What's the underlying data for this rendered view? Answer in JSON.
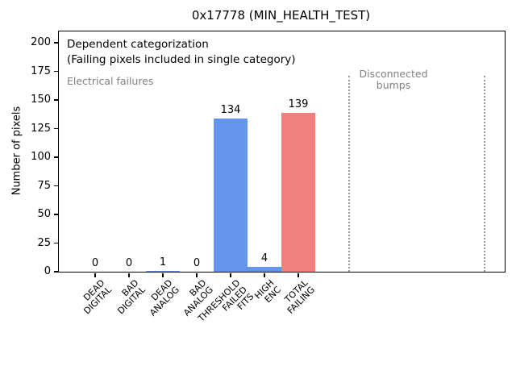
{
  "window": {
    "background": "#ffffff"
  },
  "chart_data": {
    "type": "bar",
    "title": "0x17778 (MIN_HEALTH_TEST)",
    "xlabel": "",
    "ylabel": "Number of pixels",
    "ylim": [
      0,
      210
    ],
    "yticks": [
      0,
      25,
      50,
      75,
      100,
      125,
      150,
      175,
      200
    ],
    "grid": false,
    "legend": "none",
    "categories": [
      "DEAD\nDIGITAL",
      "BAD\nDIGITAL",
      "DEAD\nANALOG",
      "BAD\nANALOG",
      "THRESHOLD\nFAILED\nFITS",
      "HIGH\nENC",
      "TOTAL\nFAILING"
    ],
    "values": [
      0,
      0,
      1,
      0,
      134,
      4,
      139
    ],
    "bar_value_labels": [
      "0",
      "0",
      "1",
      "0",
      "134",
      "4",
      "139"
    ],
    "bar_colors": [
      "#6495ed",
      "#6495ed",
      "#6495ed",
      "#6495ed",
      "#6495ed",
      "#6495ed",
      "#f08080"
    ],
    "colors": {
      "blue_bar": "#6495ed",
      "red_total_bar": "#f08080",
      "gray_text": "#808080",
      "dotted_line": "#999999",
      "axis": "#000000"
    },
    "annotations": [
      {
        "text": "Dependent categorization",
        "color": "#000000"
      },
      {
        "text": "(Failing pixels included in single category)",
        "color": "#000000"
      },
      {
        "text": "Electrical failures",
        "color": "#808080"
      },
      {
        "text": "Disconnected\nbumps",
        "color": "#808080"
      }
    ],
    "vlines": [
      {
        "x_index": 7.5,
        "style": "dotted",
        "color": "#999999"
      },
      {
        "x_index": 11.5,
        "style": "dotted",
        "color": "#999999"
      }
    ]
  }
}
